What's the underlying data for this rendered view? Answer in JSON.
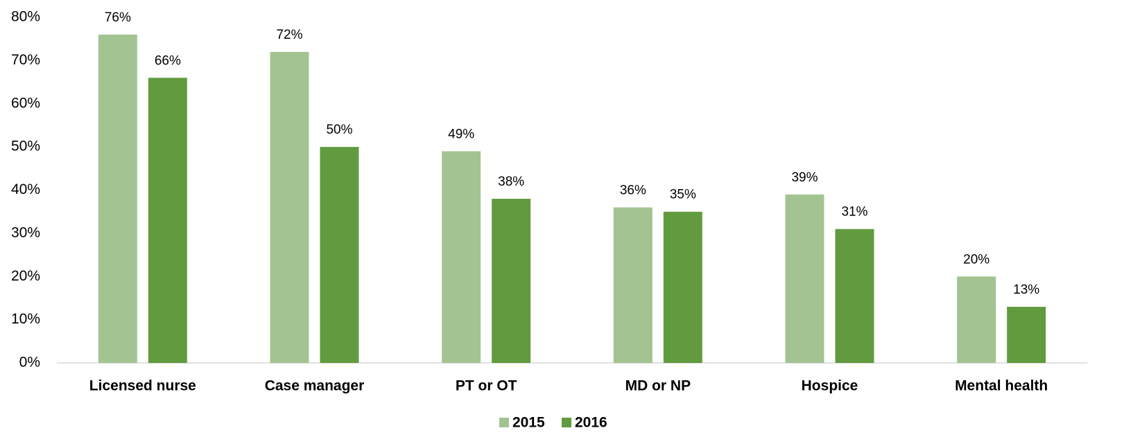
{
  "chart_data": {
    "type": "bar",
    "categories": [
      "Licensed nurse",
      "Case manager",
      "PT or OT",
      "MD or NP",
      "Hospice",
      "Mental health"
    ],
    "series": [
      {
        "name": "2015",
        "color": "#a3c492",
        "values": [
          76,
          72,
          49,
          36,
          39,
          20
        ],
        "value_labels": [
          "76%",
          "72%",
          "49%",
          "36%",
          "39%",
          "20%"
        ]
      },
      {
        "name": "2016",
        "color": "#629b3f",
        "values": [
          66,
          50,
          38,
          35,
          31,
          13
        ],
        "value_labels": [
          "66%",
          "50%",
          "38%",
          "35%",
          "31%",
          "13%"
        ]
      }
    ],
    "ylim": [
      0,
      80
    ],
    "yticks": [
      {
        "value": 0,
        "label": "0%"
      },
      {
        "value": 10,
        "label": "10%"
      },
      {
        "value": 20,
        "label": "20%"
      },
      {
        "value": 30,
        "label": "30%"
      },
      {
        "value": 40,
        "label": "40%"
      },
      {
        "value": 50,
        "label": "50%"
      },
      {
        "value": 60,
        "label": "60%"
      },
      {
        "value": 70,
        "label": "70%"
      },
      {
        "value": 80,
        "label": "80%"
      }
    ],
    "grid": false,
    "legend": "bottom"
  }
}
